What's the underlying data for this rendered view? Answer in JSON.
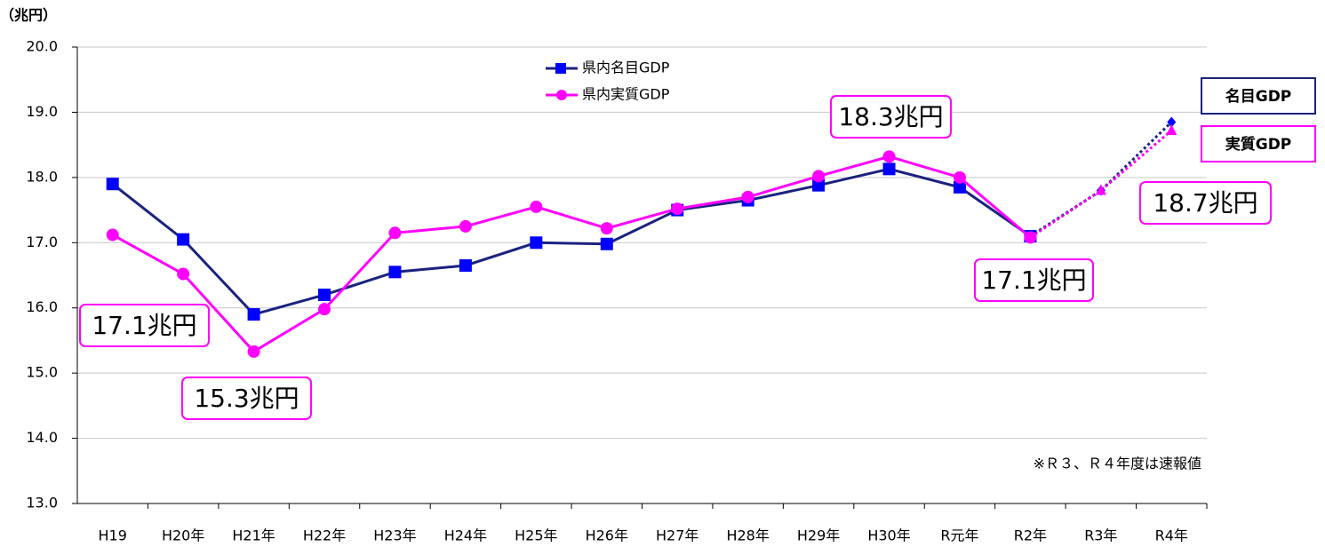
{
  "chart_data": {
    "type": "line",
    "unit_label": "（兆円）",
    "note": "※Ｒ３、Ｒ４年度は速報値",
    "categories": [
      "H19",
      "H20年",
      "H21年",
      "H22年",
      "H23年",
      "H24年",
      "H25年",
      "H26年",
      "H27年",
      "H28年",
      "H29年",
      "H30年",
      "R元年",
      "R2年",
      "R3年",
      "R4年"
    ],
    "series": [
      {
        "name": "県内名目GDP",
        "color": "#1a237e",
        "marker_color": "#0000ff",
        "marker": "square",
        "values": [
          17.9,
          17.05,
          15.9,
          16.2,
          16.55,
          16.65,
          17.0,
          16.98,
          17.5,
          17.65,
          17.88,
          18.13,
          17.85,
          17.1,
          17.8,
          18.85
        ]
      },
      {
        "name": "県内実質GDP",
        "color": "#ff00ff",
        "marker_color": "#ff00ff",
        "marker": "circle",
        "values": [
          17.12,
          16.52,
          15.33,
          15.98,
          17.15,
          17.25,
          17.55,
          17.22,
          17.52,
          17.7,
          18.02,
          18.32,
          18.0,
          17.08,
          17.8,
          18.72
        ]
      }
    ],
    "dashed_from_index": 13,
    "ylim": [
      13,
      20
    ],
    "yticks": [
      {
        "value": 13,
        "label": "13.0"
      },
      {
        "value": 14,
        "label": "14.0"
      },
      {
        "value": 15,
        "label": "15.0"
      },
      {
        "value": 16,
        "label": "16.0"
      },
      {
        "value": 17,
        "label": "17.0"
      },
      {
        "value": 18,
        "label": "18.0"
      },
      {
        "value": 19,
        "label": "19.0"
      },
      {
        "value": 20,
        "label": "20.0"
      }
    ],
    "grid": true,
    "annotations": [
      "17.1兆円",
      "15.3兆円",
      "18.3兆円",
      "17.1兆円",
      "18.7兆円"
    ],
    "series_tags": [
      "名目GDP",
      "実質GDP"
    ]
  }
}
